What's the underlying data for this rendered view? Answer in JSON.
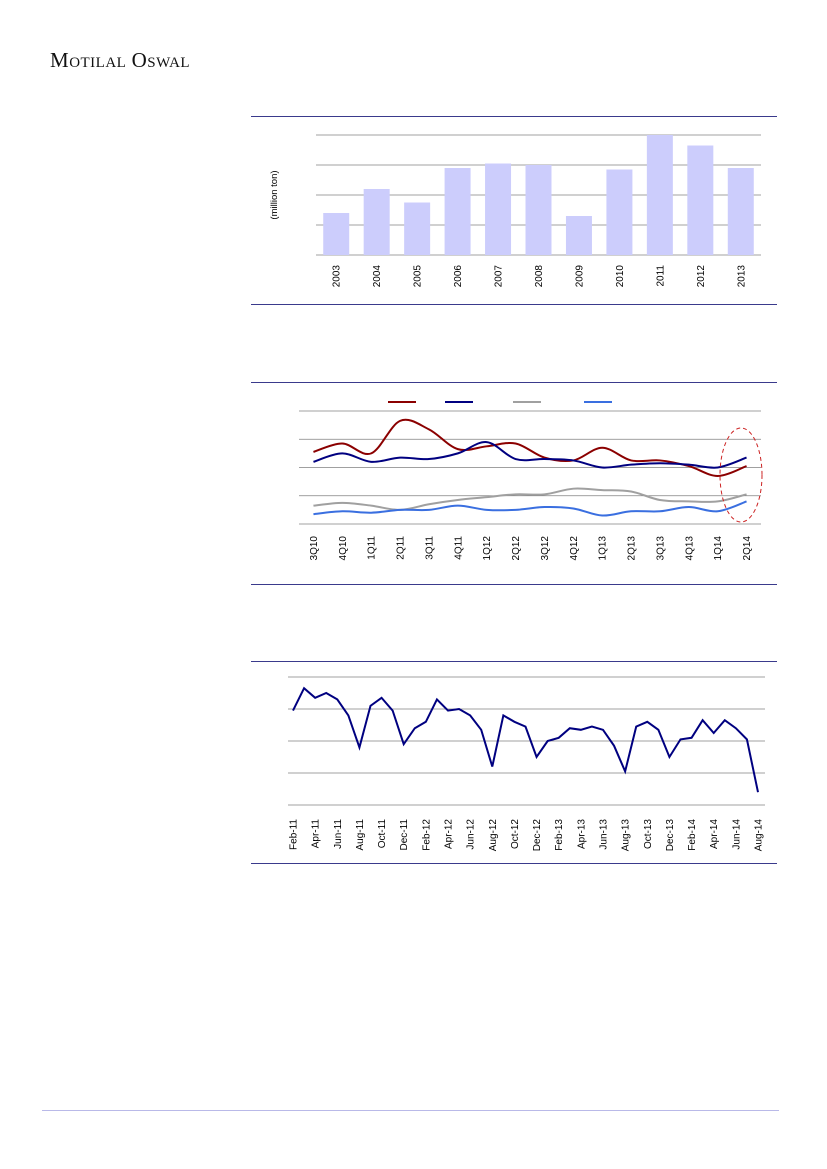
{
  "header": {
    "brand_m": "M",
    "brand_rest1": "OTILAL",
    "brand_o": "O",
    "brand_rest2": "SWAL"
  },
  "colors": {
    "bar": "#cccdfc",
    "grid": "#808080",
    "rule": "#3a3a8c",
    "highlight_ellipse": "#cc2222"
  },
  "chart_data": [
    {
      "type": "bar",
      "ylabel": "(million ton)",
      "categories": [
        "2003",
        "2004",
        "2005",
        "2006",
        "2007",
        "2008",
        "2009",
        "2010",
        "2011",
        "2012",
        "2013"
      ],
      "values": [
        1.4,
        2.2,
        1.75,
        2.9,
        3.05,
        3.0,
        1.3,
        2.85,
        4.0,
        3.65,
        2.9
      ],
      "ylim": [
        0,
        4
      ],
      "grid": true
    },
    {
      "type": "line",
      "categories": [
        "3Q10",
        "4Q10",
        "1Q11",
        "2Q11",
        "3Q11",
        "4Q11",
        "1Q12",
        "2Q12",
        "3Q12",
        "4Q12",
        "1Q13",
        "2Q13",
        "3Q13",
        "4Q13",
        "1Q14",
        "2Q14"
      ],
      "ylim": [
        0,
        4
      ],
      "grid": true,
      "highlight": "ellipse around 1Q14-2Q14",
      "series": [
        {
          "color": "#8b0000",
          "values": [
            2.55,
            2.85,
            2.5,
            3.65,
            3.35,
            2.65,
            2.75,
            2.85,
            2.35,
            2.25,
            2.7,
            2.25,
            2.25,
            2.05,
            1.7,
            2.05
          ]
        },
        {
          "color": "#000080",
          "values": [
            2.2,
            2.5,
            2.2,
            2.35,
            2.3,
            2.5,
            2.9,
            2.3,
            2.3,
            2.25,
            2.0,
            2.1,
            2.15,
            2.1,
            2.0,
            2.35
          ]
        },
        {
          "color": "#a0a0a0",
          "values": [
            0.65,
            0.75,
            0.65,
            0.5,
            0.7,
            0.85,
            0.95,
            1.05,
            1.05,
            1.25,
            1.2,
            1.15,
            0.85,
            0.8,
            0.8,
            1.05
          ]
        },
        {
          "color": "#3a6fe0",
          "values": [
            0.35,
            0.45,
            0.4,
            0.5,
            0.5,
            0.65,
            0.5,
            0.5,
            0.6,
            0.55,
            0.3,
            0.45,
            0.45,
            0.6,
            0.45,
            0.8
          ]
        }
      ]
    },
    {
      "type": "line",
      "x_labels": [
        "Feb-11",
        "Apr-11",
        "Jun-11",
        "Aug-11",
        "Oct-11",
        "Dec-11",
        "Feb-12",
        "Apr-12",
        "Jun-12",
        "Aug-12",
        "Oct-12",
        "Dec-12",
        "Feb-13",
        "Apr-13",
        "Jun-13",
        "Aug-13",
        "Oct-13",
        "Dec-13",
        "Feb-14",
        "Apr-14",
        "Jun-14",
        "Aug-14"
      ],
      "ylim": [
        0,
        4
      ],
      "grid": true,
      "series": [
        {
          "color": "#000080",
          "values": [
            2.95,
            3.65,
            3.35,
            3.5,
            3.3,
            2.8,
            1.8,
            3.1,
            3.35,
            2.95,
            1.9,
            2.4,
            2.6,
            3.3,
            2.95,
            3.0,
            2.8,
            2.35,
            1.2,
            2.8,
            2.6,
            2.45,
            1.5,
            2.0,
            2.1,
            2.4,
            2.35,
            2.45,
            2.35,
            1.85,
            1.05,
            2.45,
            2.6,
            2.35,
            1.5,
            2.05,
            2.1,
            2.65,
            2.25,
            2.65,
            2.4,
            2.05,
            0.4
          ]
        }
      ]
    }
  ]
}
